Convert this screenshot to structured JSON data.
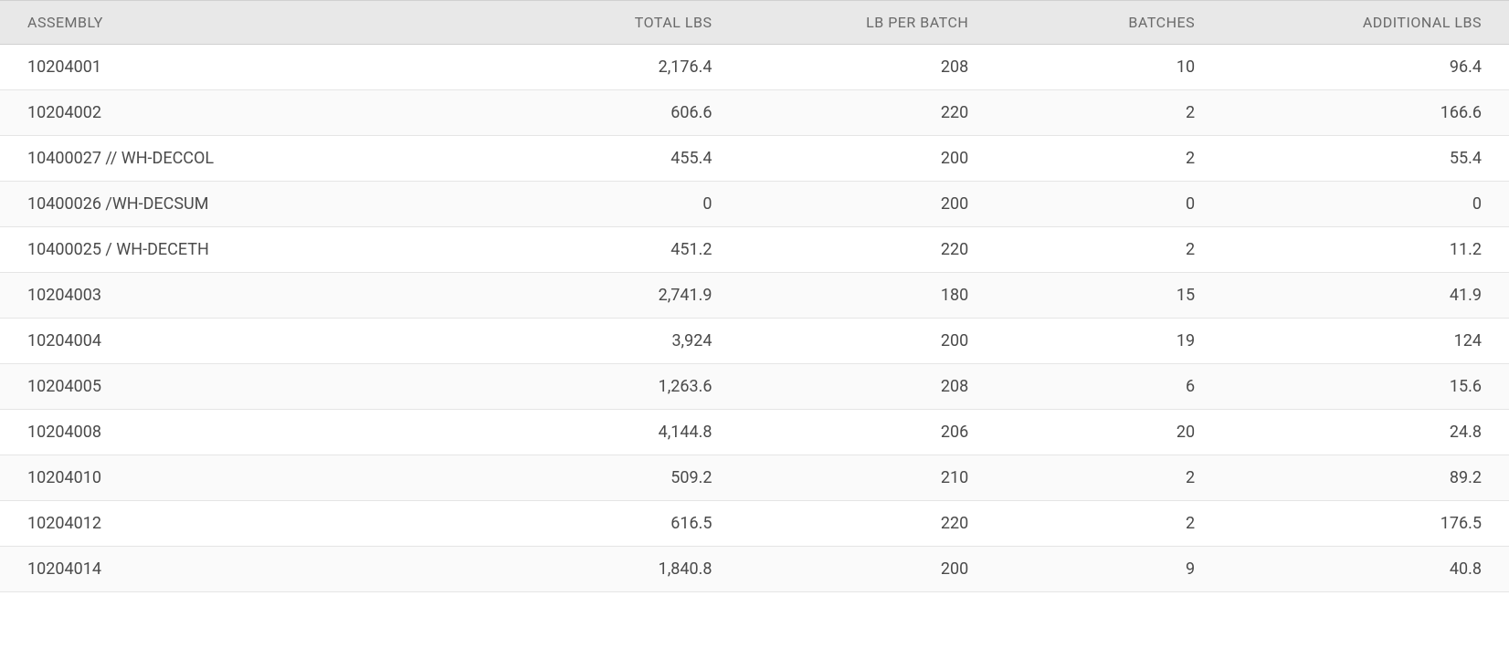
{
  "table": {
    "columns": [
      {
        "key": "assembly",
        "label": "ASSEMBLY",
        "align": "left",
        "width": "32%"
      },
      {
        "key": "total_lbs",
        "label": "TOTAL LBS",
        "align": "right",
        "width": "17%"
      },
      {
        "key": "lb_per_batch",
        "label": "LB PER BATCH",
        "align": "right",
        "width": "17%"
      },
      {
        "key": "batches",
        "label": "BATCHES",
        "align": "right",
        "width": "15%"
      },
      {
        "key": "additional_lbs",
        "label": "ADDITIONAL LBS",
        "align": "right",
        "width": "19%"
      }
    ],
    "rows": [
      {
        "assembly": "10204001",
        "total_lbs": "2,176.4",
        "lb_per_batch": "208",
        "batches": "10",
        "additional_lbs": "96.4"
      },
      {
        "assembly": "10204002",
        "total_lbs": "606.6",
        "lb_per_batch": "220",
        "batches": "2",
        "additional_lbs": "166.6"
      },
      {
        "assembly": "10400027 // WH-DECCOL",
        "total_lbs": "455.4",
        "lb_per_batch": "200",
        "batches": "2",
        "additional_lbs": "55.4"
      },
      {
        "assembly": "10400026 /WH-DECSUM",
        "total_lbs": "0",
        "lb_per_batch": "200",
        "batches": "0",
        "additional_lbs": "0"
      },
      {
        "assembly": "10400025 / WH-DECETH",
        "total_lbs": "451.2",
        "lb_per_batch": "220",
        "batches": "2",
        "additional_lbs": "11.2"
      },
      {
        "assembly": "10204003",
        "total_lbs": "2,741.9",
        "lb_per_batch": "180",
        "batches": "15",
        "additional_lbs": "41.9"
      },
      {
        "assembly": "10204004",
        "total_lbs": "3,924",
        "lb_per_batch": "200",
        "batches": "19",
        "additional_lbs": "124"
      },
      {
        "assembly": "10204005",
        "total_lbs": "1,263.6",
        "lb_per_batch": "208",
        "batches": "6",
        "additional_lbs": "15.6"
      },
      {
        "assembly": "10204008",
        "total_lbs": "4,144.8",
        "lb_per_batch": "206",
        "batches": "20",
        "additional_lbs": "24.8"
      },
      {
        "assembly": "10204010",
        "total_lbs": "509.2",
        "lb_per_batch": "210",
        "batches": "2",
        "additional_lbs": "89.2"
      },
      {
        "assembly": "10204012",
        "total_lbs": "616.5",
        "lb_per_batch": "220",
        "batches": "2",
        "additional_lbs": "176.5"
      },
      {
        "assembly": "10204014",
        "total_lbs": "1,840.8",
        "lb_per_batch": "200",
        "batches": "9",
        "additional_lbs": "40.8"
      }
    ]
  },
  "styles": {
    "header_bg": "#e8e8e8",
    "header_border": "#d0d0d0",
    "row_border": "#e5e5e5",
    "row_alt_bg": "#fafafa",
    "header_text_color": "#6a6a6a",
    "cell_text_color": "#4a4a4a",
    "body_fontsize": 18,
    "header_fontsize": 16
  }
}
